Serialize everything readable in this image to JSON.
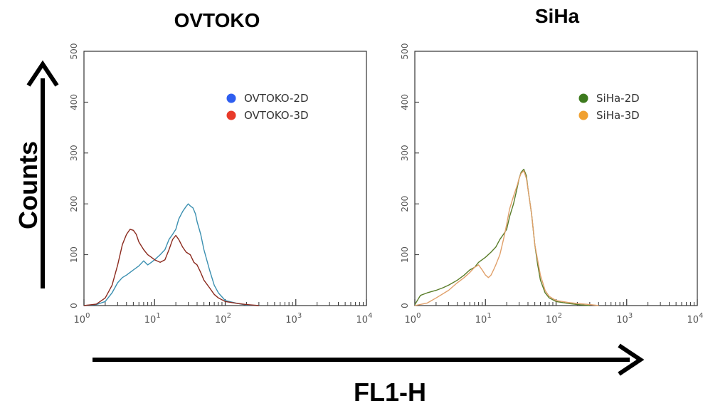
{
  "figure": {
    "x_arrow_label": "FL1-H",
    "y_arrow_label": "Counts"
  },
  "chart_data": [
    {
      "type": "line",
      "title": "OVTOKO",
      "xscale": "log",
      "xlim": [
        1,
        10000
      ],
      "ylim": [
        0,
        500
      ],
      "yticks": [
        0,
        100,
        200,
        300,
        400,
        500
      ],
      "xtick_labels": [
        {
          "base": "10",
          "exp": "0"
        },
        {
          "base": "10",
          "exp": "1"
        },
        {
          "base": "10",
          "exp": "2"
        },
        {
          "base": "10",
          "exp": "3"
        },
        {
          "base": "10",
          "exp": "4"
        }
      ],
      "legend_position": "top-right",
      "series": [
        {
          "name": "OVTOKO-2D",
          "color": "#3a8fb0",
          "legend_color": "#2e5ef0",
          "x": [
            1,
            1.5,
            2,
            2.5,
            3,
            3.5,
            4,
            5,
            6,
            7,
            8,
            9,
            10,
            12,
            14,
            16,
            18,
            20,
            22,
            25,
            28,
            30,
            32,
            35,
            38,
            40,
            45,
            50,
            60,
            70,
            80,
            100,
            150,
            200,
            300
          ],
          "y": [
            0,
            2,
            8,
            25,
            45,
            55,
            60,
            70,
            78,
            88,
            80,
            85,
            90,
            100,
            110,
            130,
            140,
            150,
            170,
            185,
            195,
            200,
            196,
            192,
            180,
            165,
            140,
            110,
            70,
            40,
            25,
            10,
            4,
            1,
            0
          ]
        },
        {
          "name": "OVTOKO-3D",
          "color": "#8b2a1e",
          "legend_color": "#e83a2a",
          "x": [
            1,
            1.5,
            2,
            2.5,
            3,
            3.5,
            4,
            4.5,
            5,
            5.5,
            6,
            7,
            8,
            9,
            10,
            12,
            14,
            16,
            18,
            20,
            22,
            25,
            28,
            32,
            36,
            40,
            45,
            50,
            60,
            70,
            80,
            100,
            150,
            200,
            300
          ],
          "y": [
            0,
            3,
            15,
            40,
            80,
            120,
            140,
            150,
            148,
            140,
            125,
            110,
            100,
            95,
            90,
            85,
            90,
            110,
            130,
            138,
            130,
            115,
            105,
            100,
            85,
            80,
            65,
            50,
            35,
            22,
            15,
            8,
            4,
            2,
            0
          ]
        }
      ]
    },
    {
      "type": "line",
      "title": "SiHa",
      "xscale": "log",
      "xlim": [
        1,
        10000
      ],
      "ylim": [
        0,
        500
      ],
      "yticks": [
        0,
        100,
        200,
        300,
        400,
        500
      ],
      "xtick_labels": [
        {
          "base": "10",
          "exp": "0"
        },
        {
          "base": "10",
          "exp": "1"
        },
        {
          "base": "10",
          "exp": "2"
        },
        {
          "base": "10",
          "exp": "3"
        },
        {
          "base": "10",
          "exp": "4"
        }
      ],
      "legend_position": "top-right",
      "series": [
        {
          "name": "SiHa-2D",
          "color": "#5a7d2a",
          "legend_color": "#3d7a1e",
          "x": [
            1,
            1.2,
            1.5,
            2,
            2.5,
            3,
            4,
            5,
            6,
            7,
            8,
            10,
            12,
            14,
            16,
            18,
            20,
            22,
            25,
            28,
            30,
            32,
            35,
            38,
            40,
            45,
            50,
            55,
            60,
            70,
            80,
            100,
            150,
            200,
            300
          ],
          "y": [
            2,
            20,
            25,
            30,
            35,
            40,
            50,
            60,
            70,
            75,
            85,
            95,
            105,
            115,
            130,
            140,
            150,
            175,
            200,
            230,
            250,
            262,
            268,
            255,
            230,
            180,
            120,
            80,
            50,
            25,
            15,
            8,
            4,
            2,
            0
          ]
        },
        {
          "name": "SiHa-3D",
          "color": "#e0a06a",
          "legend_color": "#f0a030",
          "x": [
            1,
            1.5,
            2,
            3,
            4,
            5,
            6,
            7,
            8,
            9,
            10,
            11,
            12,
            13,
            14,
            16,
            18,
            20,
            22,
            25,
            28,
            30,
            32,
            35,
            38,
            40,
            45,
            50,
            60,
            70,
            80,
            100,
            150,
            200,
            300,
            400
          ],
          "y": [
            0,
            5,
            15,
            30,
            45,
            55,
            65,
            75,
            80,
            70,
            60,
            55,
            60,
            70,
            80,
            100,
            130,
            160,
            190,
            215,
            235,
            250,
            260,
            265,
            250,
            230,
            180,
            120,
            60,
            30,
            18,
            10,
            6,
            4,
            2,
            0
          ]
        }
      ]
    }
  ]
}
